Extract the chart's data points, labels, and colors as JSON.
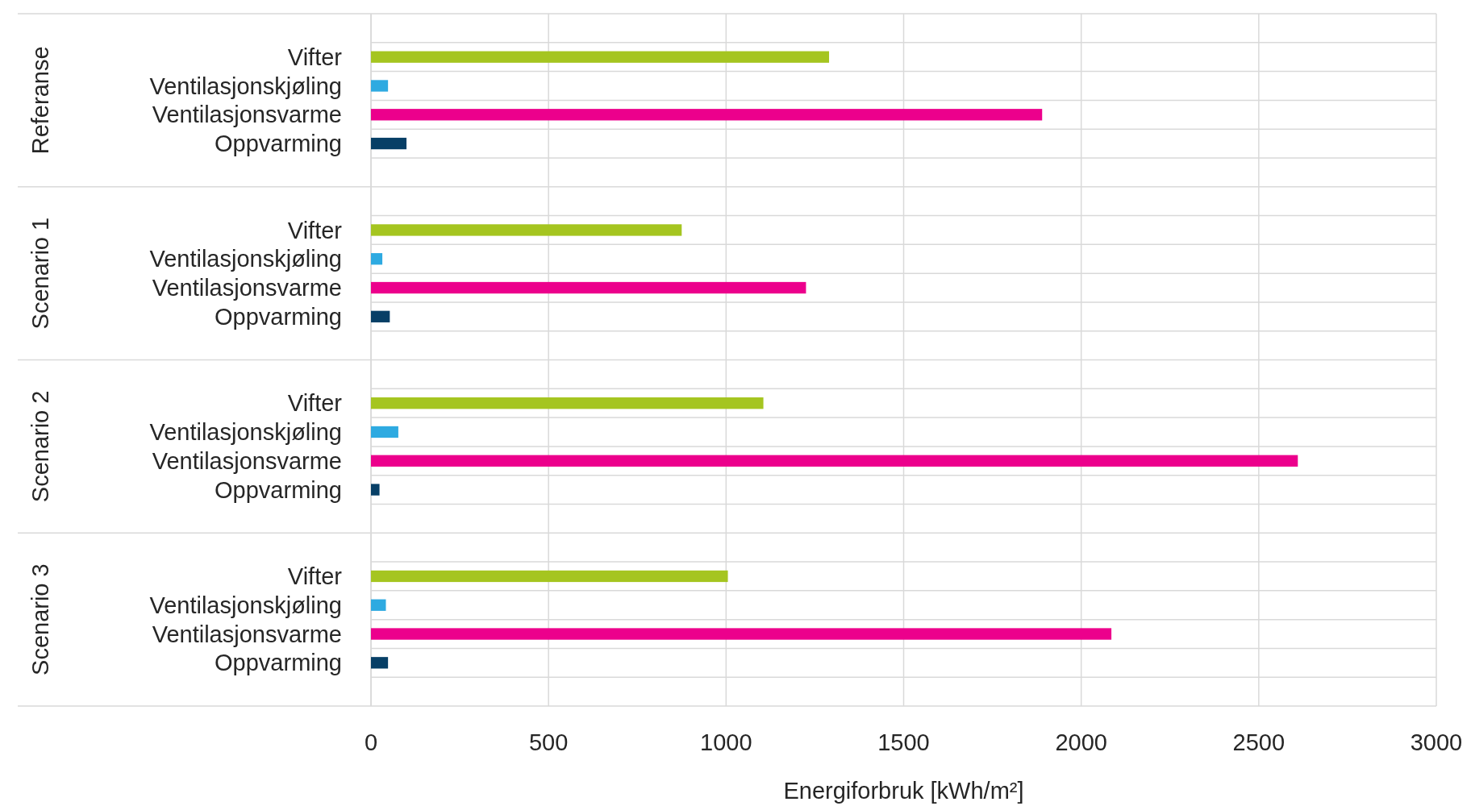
{
  "chart_data": {
    "type": "bar",
    "orientation": "horizontal",
    "categories": [
      "Vifter",
      "Ventilasjonskjøling",
      "Ventilasjonsvarme",
      "Oppvarming",
      "Vifter",
      "Ventilasjonskjøling",
      "Ventilasjonsvarme",
      "Oppvarming",
      "Vifter",
      "Ventilasjonskjøling",
      "Ventilasjonsvarme",
      "Oppvarming",
      "Vifter",
      "Ventilasjonskjøling",
      "Ventilasjonsvarme",
      "Oppvarming"
    ],
    "values": [
      1290,
      48,
      1890,
      100,
      875,
      32,
      1225,
      53,
      1105,
      77,
      2610,
      24,
      1005,
      42,
      2085,
      48
    ],
    "colors": [
      "#a5c520",
      "#2eaae1",
      "#ec008c",
      "#073f66",
      "#a5c520",
      "#2eaae1",
      "#ec008c",
      "#073f66",
      "#a5c520",
      "#2eaae1",
      "#ec008c",
      "#073f66",
      "#a5c520",
      "#2eaae1",
      "#ec008c",
      "#073f66"
    ],
    "xlim": [
      0,
      3000
    ],
    "xticks": [
      0,
      500,
      1000,
      1500,
      2000,
      2500,
      3000
    ],
    "xlabel": "Energiforbruk [kWh/m²]",
    "annotations": [
      "Referanse",
      "Scenario 1",
      "Scenario 2",
      "Scenario 3"
    ],
    "grid": true
  }
}
